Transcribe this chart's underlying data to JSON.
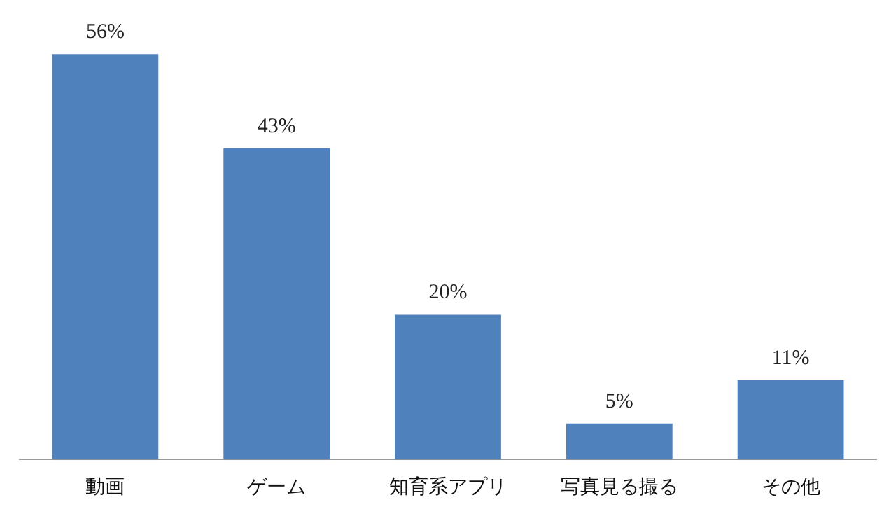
{
  "chart_data": {
    "type": "bar",
    "categories": [
      "動画",
      "ゲーム",
      "知育系アプリ",
      "写真見る撮る",
      "その他"
    ],
    "values": [
      56,
      43,
      20,
      5,
      11
    ],
    "value_labels": [
      "56%",
      "43%",
      "20%",
      "5%",
      "11%"
    ],
    "color": "#4f81bd",
    "grid": false,
    "legend": false
  }
}
